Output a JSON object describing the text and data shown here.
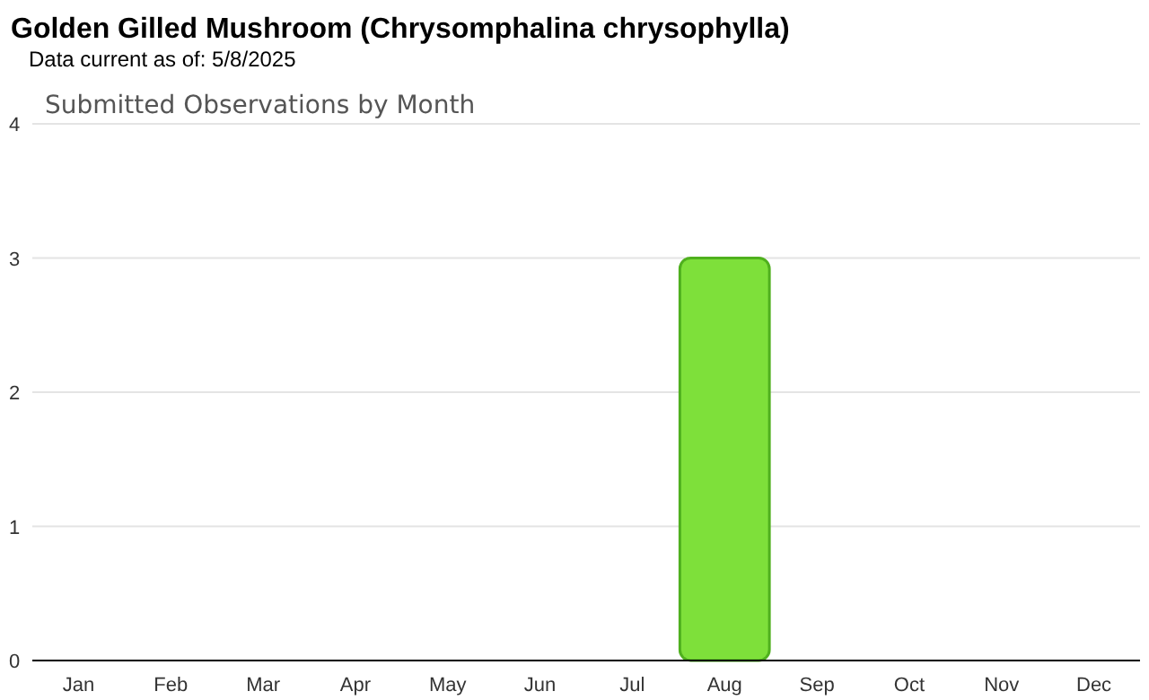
{
  "chart_data": {
    "type": "bar",
    "title": "Golden Gilled Mushroom   (Chrysomphalina chrysophylla)",
    "subtitle": "Data current as of: 5/8/2025",
    "annotations": [
      "Submitted Observations by Month"
    ],
    "categories": [
      "Jan",
      "Feb",
      "Mar",
      "Apr",
      "May",
      "Jun",
      "Jul",
      "Aug",
      "Sep",
      "Oct",
      "Nov",
      "Dec"
    ],
    "values": [
      0,
      0,
      0,
      0,
      0,
      0,
      0,
      3,
      0,
      0,
      0,
      0
    ],
    "color": "#7ee03a",
    "ylim": [
      0,
      4
    ],
    "yticks": [
      0,
      1,
      2,
      3,
      4
    ],
    "grid": "y"
  }
}
